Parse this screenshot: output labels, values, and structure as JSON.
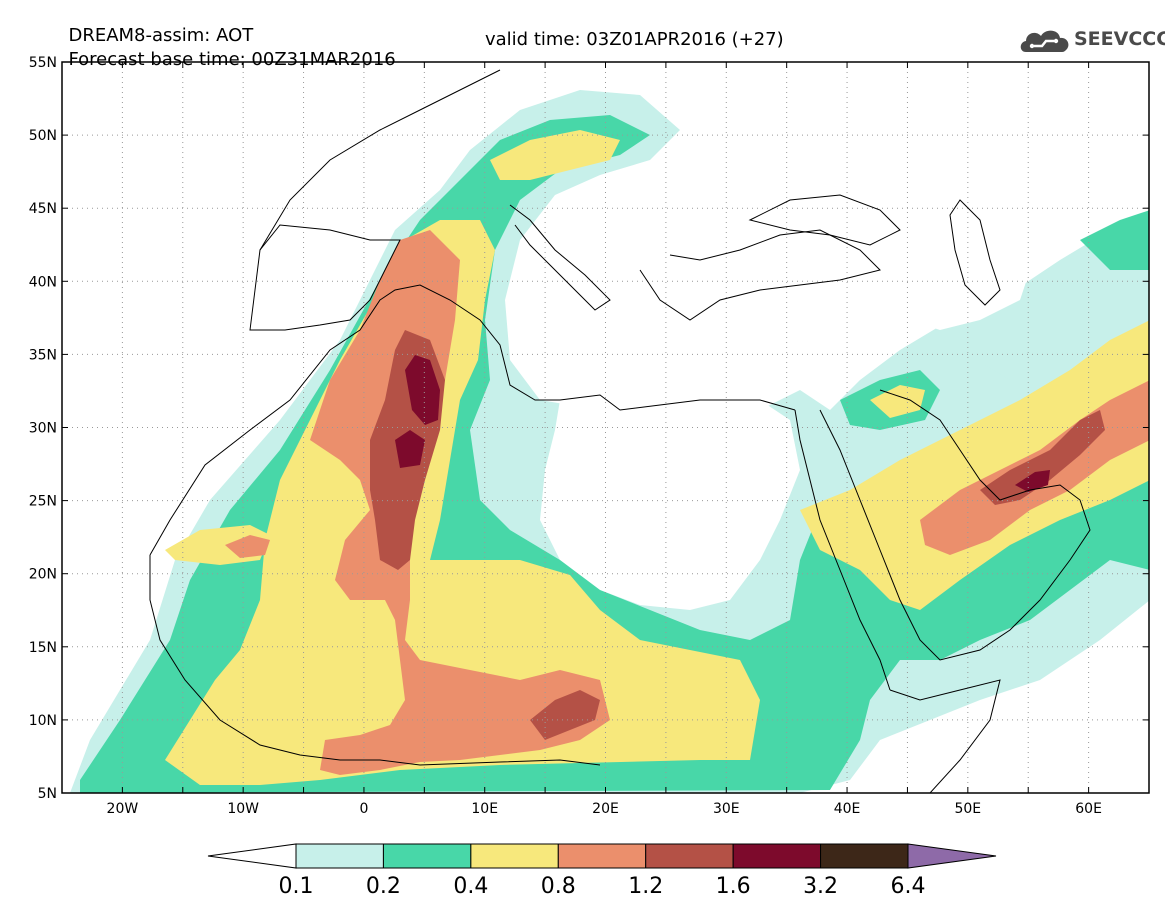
{
  "header": {
    "title": "DREAM8-assim: AOT",
    "base_time": "Forecast base time: 00Z31MAR2016",
    "valid_time": "valid time: 03Z01APR2016 (+27)"
  },
  "logo": {
    "text": "SEEVCCC",
    "icon": "cloud-icon"
  },
  "map": {
    "lat_labels": [
      "55N",
      "50N",
      "45N",
      "40N",
      "35N",
      "30N",
      "25N",
      "20N",
      "15N",
      "10N",
      "5N"
    ],
    "lat_values": [
      55,
      50,
      45,
      40,
      35,
      30,
      25,
      20,
      15,
      10,
      5
    ],
    "lon_labels": [
      "20W",
      "10W",
      "0",
      "10E",
      "20E",
      "30E",
      "40E",
      "50E",
      "60E"
    ],
    "lon_values": [
      -20,
      -10,
      0,
      10,
      20,
      30,
      40,
      50,
      60
    ],
    "lon_range": [
      -25,
      65
    ],
    "lat_range": [
      5,
      55
    ],
    "grid": true
  },
  "legend": {
    "colors": [
      "#ffffff",
      "#c7f0ea",
      "#48d7a8",
      "#f7e87c",
      "#eb8f6c",
      "#b45146",
      "#7d0a2c",
      "#3d2718",
      "#8e6aa8"
    ],
    "labels": [
      "0.1",
      "0.2",
      "0.4",
      "0.8",
      "1.2",
      "1.6",
      "3.2",
      "6.4"
    ]
  },
  "fields": {
    "c1": "#c7f0ea",
    "c2": "#48d7a8",
    "c3": "#f7e87c",
    "c4": "#eb8f6c",
    "c5": "#b45146",
    "c6": "#7d0a2c"
  }
}
